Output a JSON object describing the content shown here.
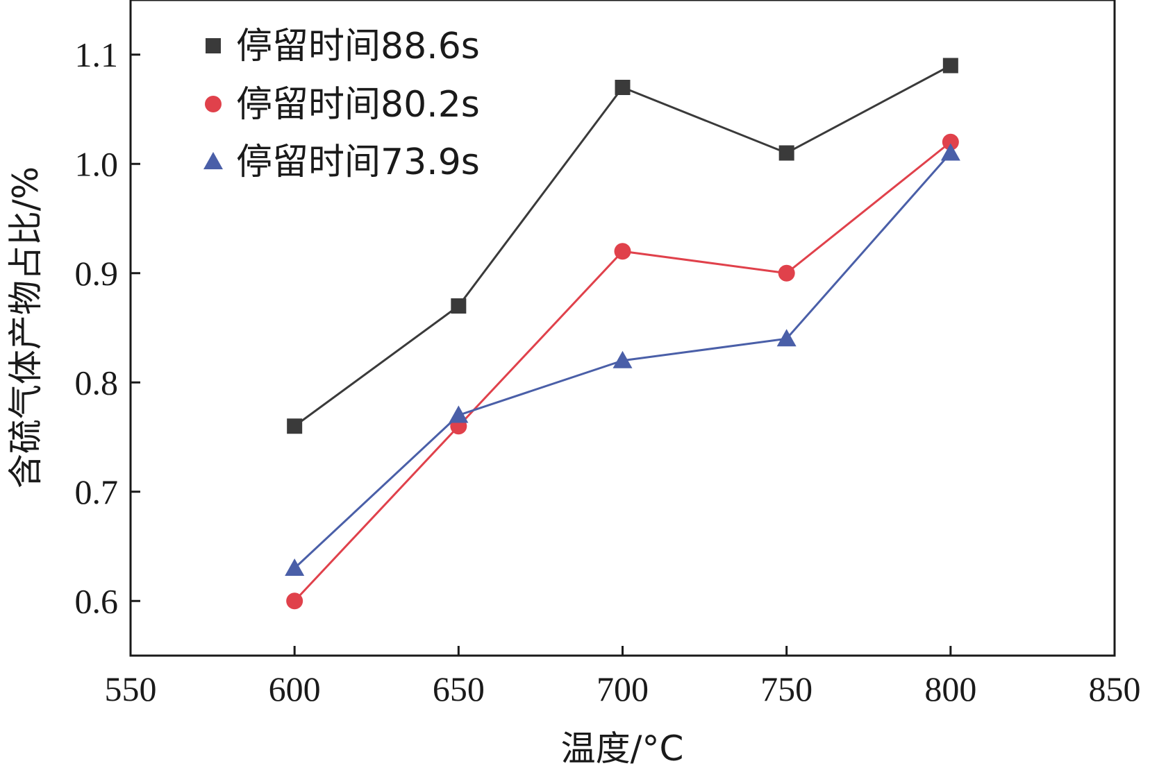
{
  "chart_data": {
    "type": "line",
    "title": "",
    "xlabel": "温度/°C",
    "ylabel": "含硫气体产物占比/%",
    "xlim": [
      550,
      850
    ],
    "ylim": [
      0.55,
      1.15
    ],
    "x_ticks": [
      550,
      600,
      650,
      700,
      750,
      800,
      850
    ],
    "y_ticks": [
      0.6,
      0.7,
      0.8,
      0.9,
      1.0,
      1.1
    ],
    "x_tick_labels": [
      "550",
      "600",
      "650",
      "700",
      "750",
      "800",
      "850"
    ],
    "y_tick_labels": [
      "0.6",
      "0.7",
      "0.8",
      "0.9",
      "1.0",
      "1.1"
    ],
    "grid": false,
    "legend_position": "top-left",
    "x": [
      600,
      650,
      700,
      750,
      800
    ],
    "series": [
      {
        "name": "停留时间88.6s",
        "values": [
          0.76,
          0.87,
          1.07,
          1.01,
          1.09
        ],
        "color": "#3a3a3a",
        "marker": "square"
      },
      {
        "name": "停留时间80.2s",
        "values": [
          0.6,
          0.76,
          0.92,
          0.9,
          1.02
        ],
        "color": "#e0414b",
        "marker": "circle"
      },
      {
        "name": "停留时间73.9s",
        "values": [
          0.63,
          0.77,
          0.82,
          0.84,
          1.01
        ],
        "color": "#4a5fa8",
        "marker": "triangle"
      }
    ]
  }
}
